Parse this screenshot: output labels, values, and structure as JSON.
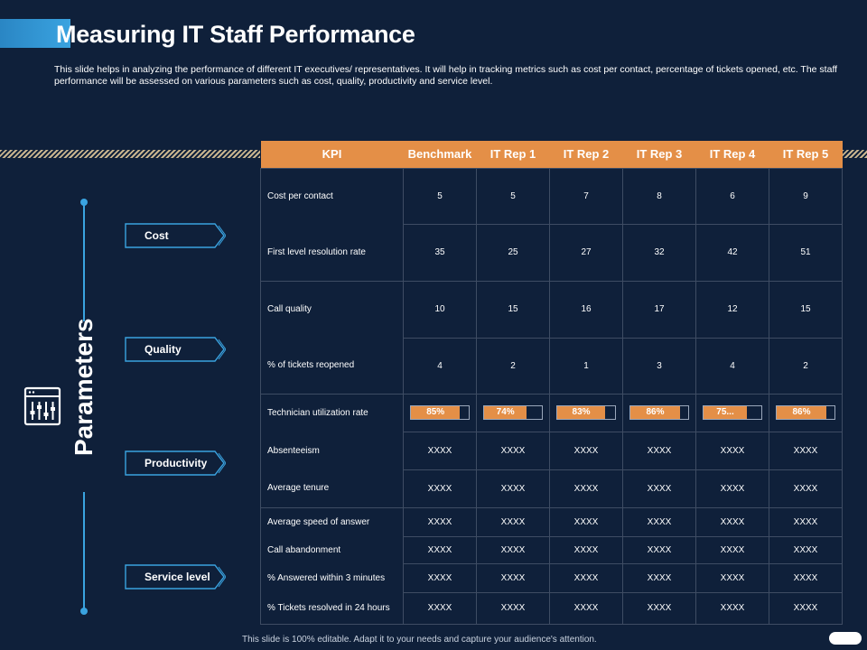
{
  "title": "Measuring IT Staff Performance",
  "description": "This slide helps in analyzing the performance of different IT executives/ representatives. It will help in tracking metrics such as cost per contact, percentage of tickets opened, etc. The staff performance will be assessed on various parameters such as cost, quality, productivity and service level.",
  "sidebar": {
    "label": "Parameters",
    "icon": "sliders-icon",
    "categories": [
      "Cost",
      "Quality",
      "Productivity",
      "Service level"
    ]
  },
  "table": {
    "headers": [
      "KPI",
      "Benchmark",
      "IT Rep 1",
      "IT Rep 2",
      "IT Rep 3",
      "IT Rep 4",
      "IT Rep 5"
    ],
    "rows": [
      {
        "kpi": "Cost per contact",
        "values": [
          "5",
          "5",
          "7",
          "8",
          "6",
          "9"
        ]
      },
      {
        "kpi": "First level resolution rate",
        "values": [
          "35",
          "25",
          "27",
          "32",
          "42",
          "51"
        ]
      },
      {
        "kpi": "Call quality",
        "values": [
          "10",
          "15",
          "16",
          "17",
          "12",
          "15"
        ]
      },
      {
        "kpi": "% of tickets reopened",
        "values": [
          "4",
          "2",
          "1",
          "3",
          "4",
          "2"
        ]
      },
      {
        "kpi": "Technician utilization rate",
        "bars": [
          {
            "label": "85%",
            "value": 85
          },
          {
            "label": "74%",
            "value": 74
          },
          {
            "label": "83%",
            "value": 83
          },
          {
            "label": "86%",
            "value": 86
          },
          {
            "label": "75...",
            "value": 75
          },
          {
            "label": "86%",
            "value": 86
          }
        ]
      },
      {
        "kpi": "Absenteeism",
        "values": [
          "XXXX",
          "XXXX",
          "XXXX",
          "XXXX",
          "XXXX",
          "XXXX"
        ]
      },
      {
        "kpi": "Average tenure",
        "values": [
          "XXXX",
          "XXXX",
          "XXXX",
          "XXXX",
          "XXXX",
          "XXXX"
        ]
      },
      {
        "kpi": "Average speed of answer",
        "values": [
          "XXXX",
          "XXXX",
          "XXXX",
          "XXXX",
          "XXXX",
          "XXXX"
        ]
      },
      {
        "kpi": "Call abandonment",
        "values": [
          "XXXX",
          "XXXX",
          "XXXX",
          "XXXX",
          "XXXX",
          "XXXX"
        ]
      },
      {
        "kpi": "% Answered within 3 minutes",
        "values": [
          "XXXX",
          "XXXX",
          "XXXX",
          "XXXX",
          "XXXX",
          "XXXX"
        ]
      },
      {
        "kpi": "% Tickets resolved in 24 hours",
        "values": [
          "XXXX",
          "XXXX",
          "XXXX",
          "XXXX",
          "XXXX",
          "XXXX"
        ]
      }
    ]
  },
  "footer": "This slide is 100% editable.  Adapt it to your needs and capture your audience's attention.",
  "colors": {
    "background": "#0f203a",
    "header": "#e48f47",
    "accent": "#3aa3e0",
    "grid": "#3e4c63"
  }
}
